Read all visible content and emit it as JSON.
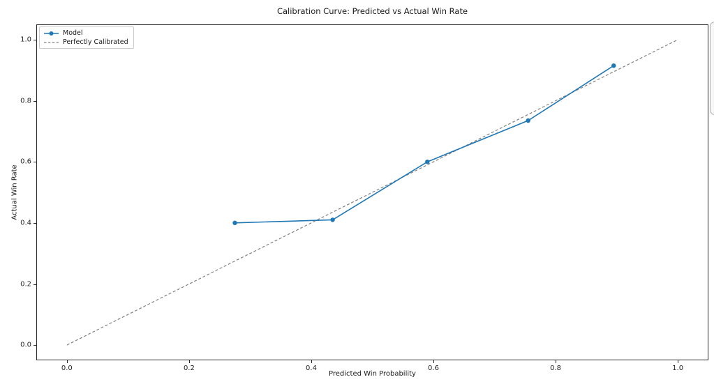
{
  "window": {
    "background": "#ffffff"
  },
  "chart_data": {
    "type": "line",
    "title": "Calibration Curve: Predicted vs Actual Win Rate",
    "xlabel": "Predicted Win Probability",
    "ylabel": "Actual Win Rate",
    "xlim": [
      -0.05,
      1.05
    ],
    "ylim": [
      -0.05,
      1.05
    ],
    "x_tick_values": [
      0.0,
      0.2,
      0.4,
      0.6,
      0.8,
      1.0
    ],
    "x_tick_labels": [
      "0.0",
      "0.2",
      "0.4",
      "0.6",
      "0.8",
      "1.0"
    ],
    "y_tick_values": [
      0.0,
      0.2,
      0.4,
      0.6,
      0.8,
      1.0
    ],
    "y_tick_labels": [
      "0.0",
      "0.2",
      "0.4",
      "0.6",
      "0.8",
      "1.0"
    ],
    "grid": false,
    "legend_position": "upper-left",
    "series": [
      {
        "name": "Model",
        "color": "#1f77b4",
        "line_style": "solid",
        "marker": "circle",
        "points": [
          [
            0.275,
            0.4
          ],
          [
            0.435,
            0.41
          ],
          [
            0.59,
            0.6
          ],
          [
            0.755,
            0.735
          ],
          [
            0.895,
            0.915
          ]
        ]
      },
      {
        "name": "Perfectly Calibrated",
        "color": "#808080",
        "line_style": "dashed",
        "marker": "none",
        "points": [
          [
            0.0,
            0.0
          ],
          [
            1.0,
            1.0
          ]
        ]
      }
    ]
  }
}
